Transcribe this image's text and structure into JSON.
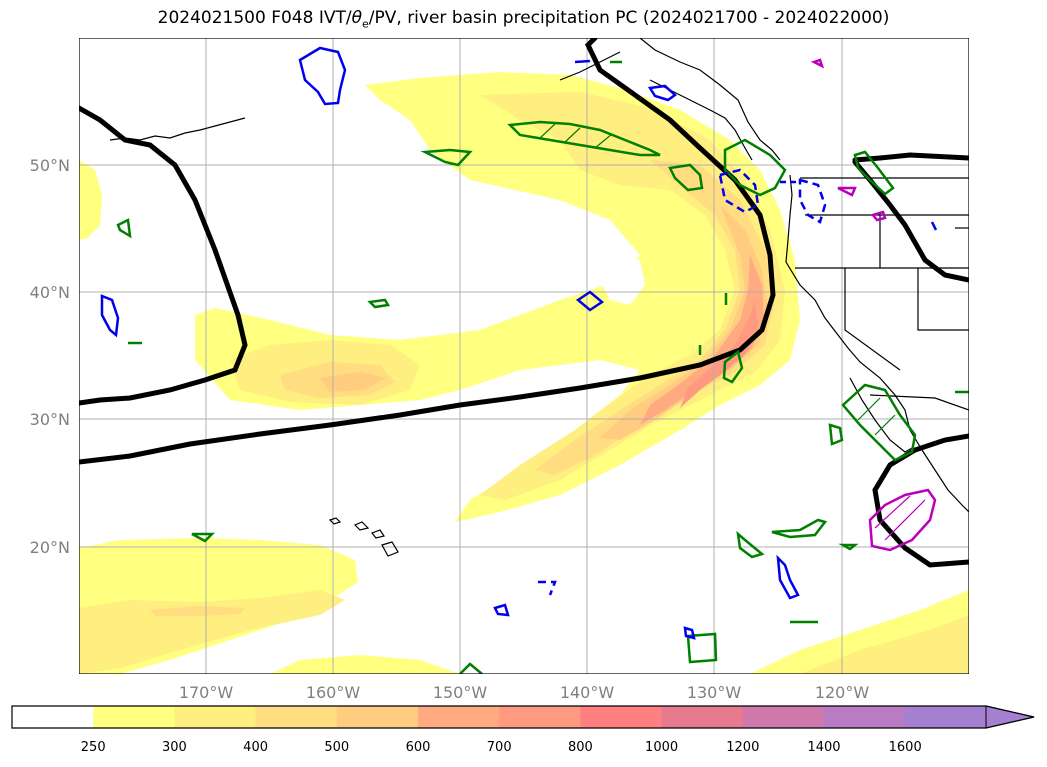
{
  "title": {
    "prefix": "2024021500 F048 IVT/",
    "theta": "θ",
    "theta_sub": "e",
    "suffix": "/PV, river basin precipitation PC (2024021700 - 2024022000)"
  },
  "map": {
    "lat_labels": [
      "50°N",
      "40°N",
      "30°N",
      "20°N"
    ],
    "lon_labels": [
      "170°W",
      "160°W",
      "150°W",
      "140°W",
      "130°W",
      "120°W"
    ]
  },
  "colorbar": {
    "ticks": [
      "250",
      "300",
      "400",
      "500",
      "600",
      "700",
      "800",
      "1000",
      "1200",
      "1400",
      "1600"
    ],
    "colors": [
      "#ffffff",
      "#ffff80",
      "#ffee80",
      "#ffdd80",
      "#ffcc80",
      "#ffaa80",
      "#ff9980",
      "#ff8080",
      "#e87a8e",
      "#cf79ad",
      "#b97bc3",
      "#a57fd0"
    ]
  },
  "chart_data": {
    "type": "heatmap",
    "variable": "IVT",
    "levels": [
      250,
      300,
      400,
      500,
      600,
      700,
      800,
      1000,
      1200,
      1400,
      1600
    ],
    "extend": "max",
    "lat_ticks": [
      50,
      40,
      30,
      20
    ],
    "lon_ticks": [
      -170,
      -160,
      -150,
      -140,
      -130,
      -120
    ],
    "extent": {
      "lon": [
        -180,
        -110
      ],
      "lat": [
        10,
        60
      ]
    },
    "overlay_colors": {
      "pv": "#000000",
      "green_contours": "#008000",
      "blue_contours": "#0000ee",
      "magenta_contours": "#bb00bb"
    }
  }
}
